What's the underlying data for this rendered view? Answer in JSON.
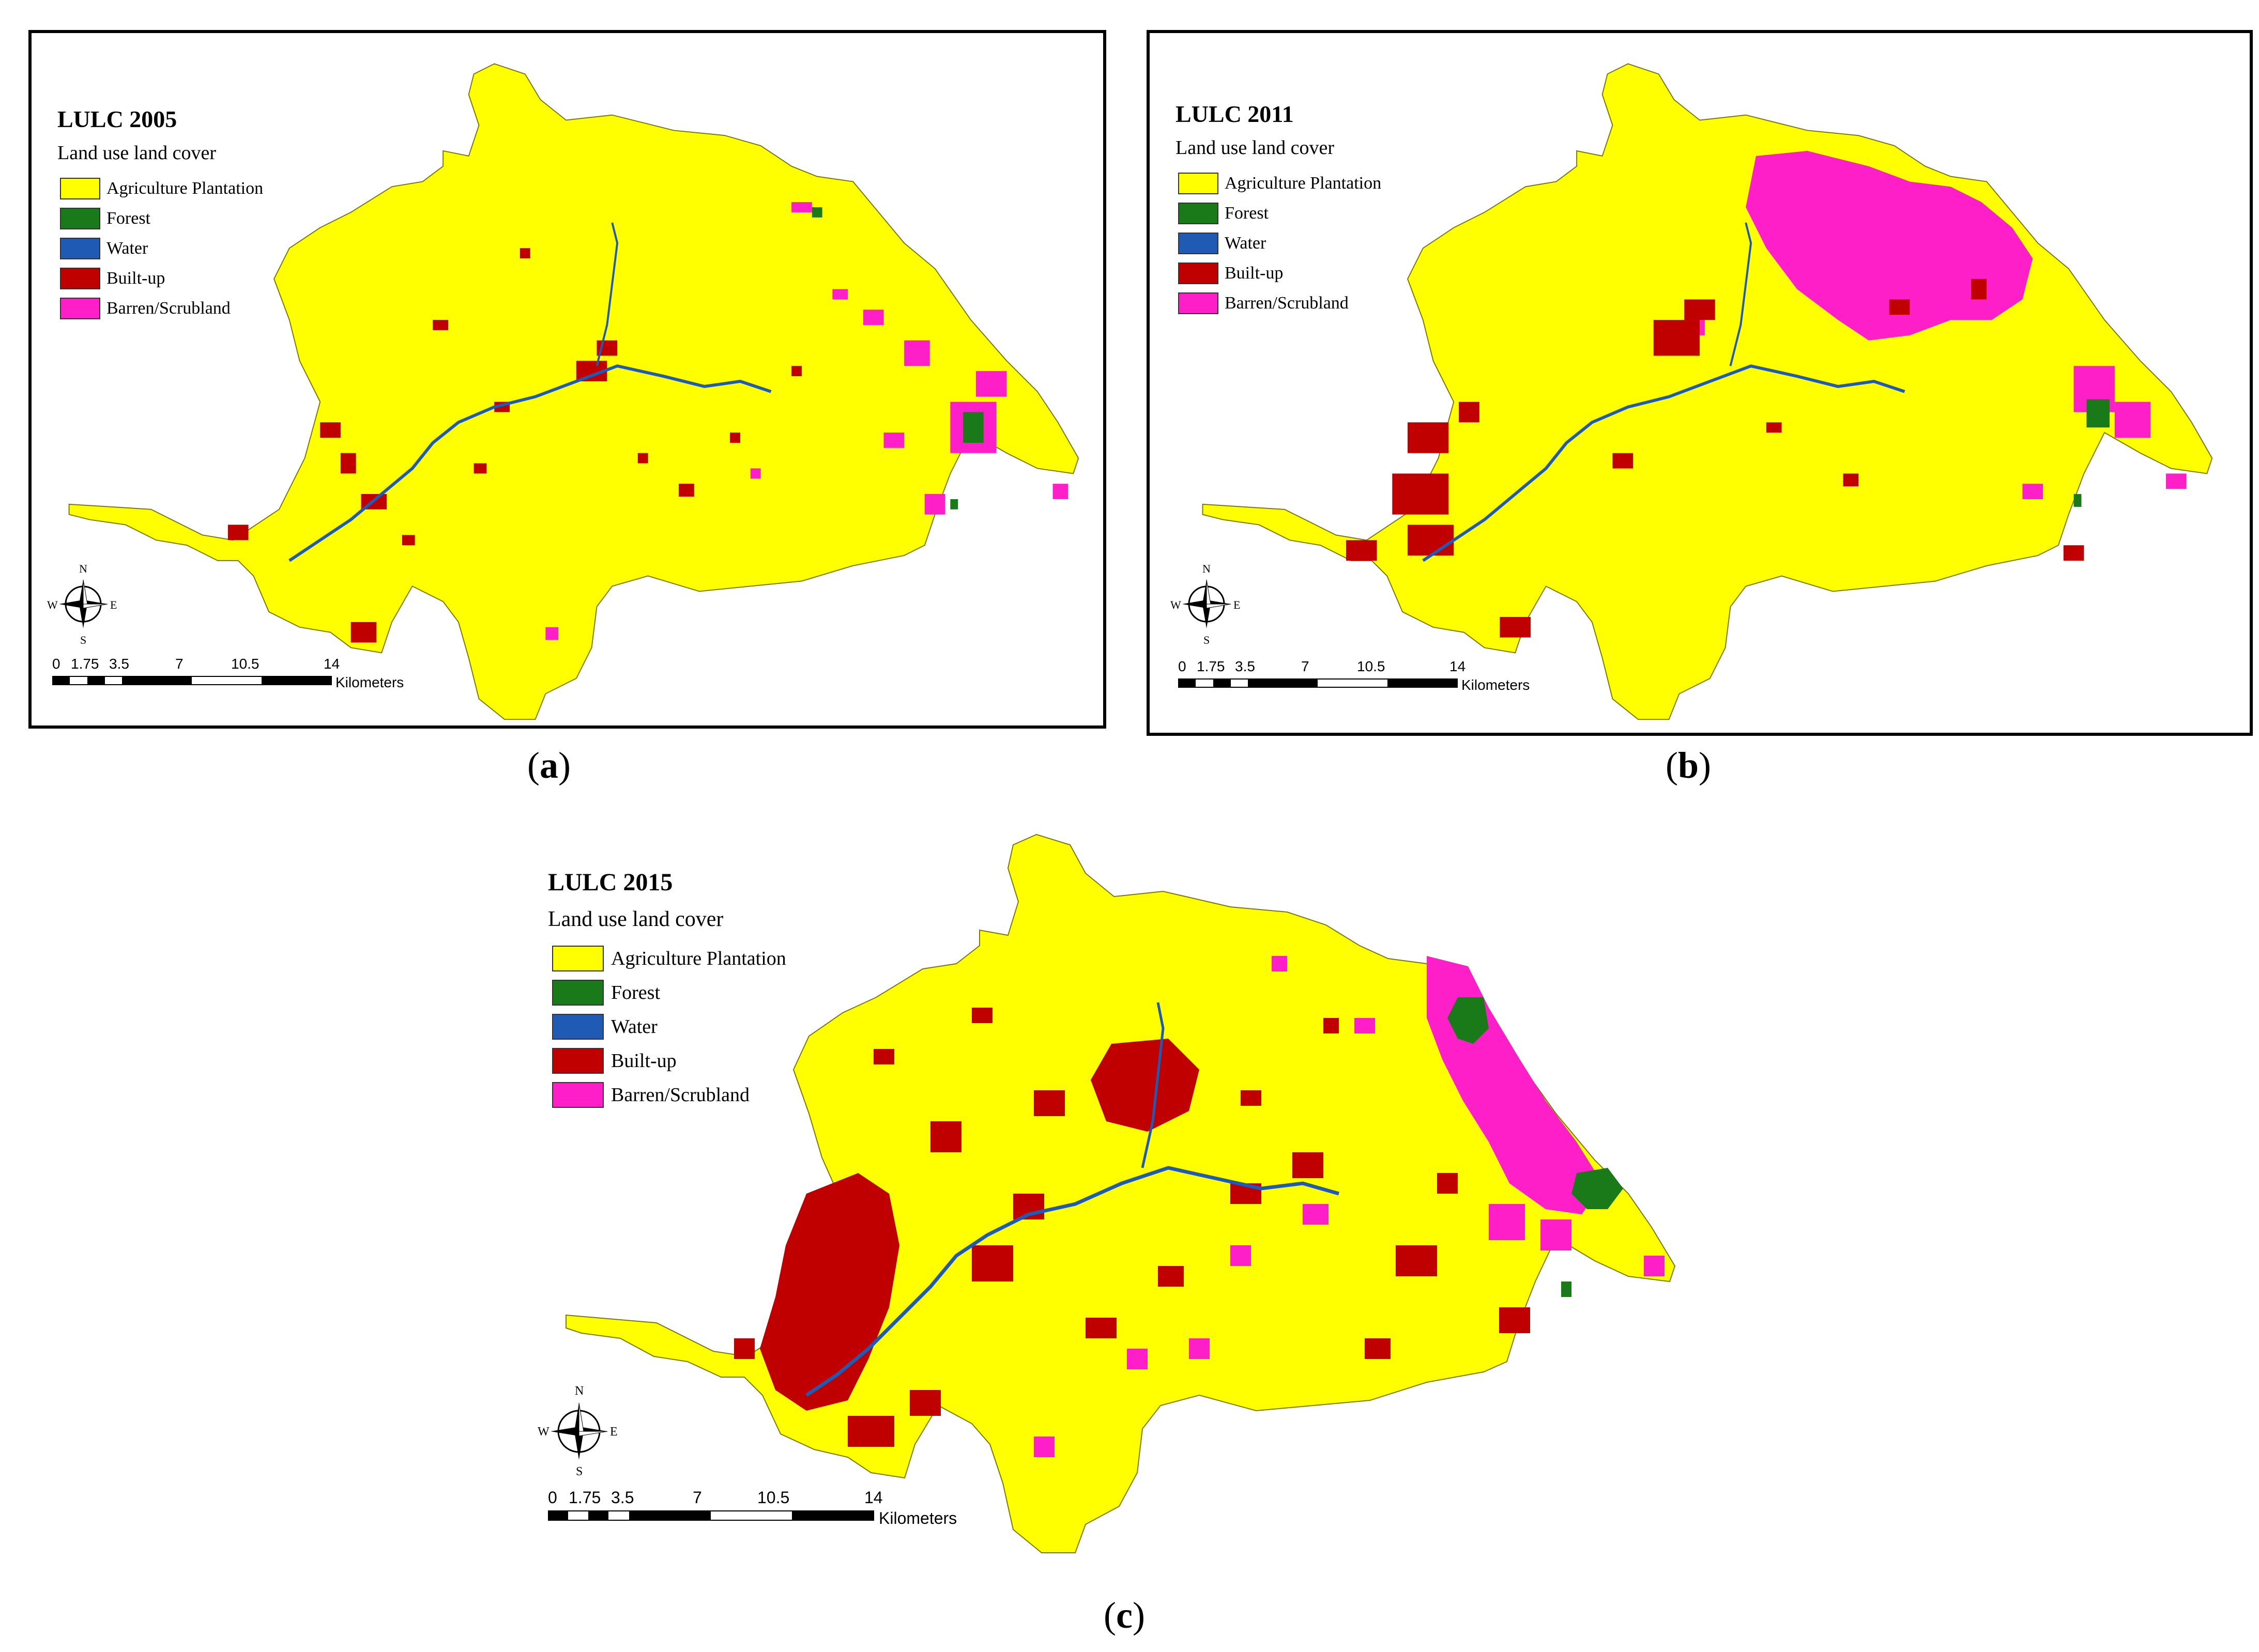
{
  "panels": [
    {
      "id": "a",
      "title": "LULC 2005",
      "subtitle": "Land use land cover",
      "caption_letter": "a"
    },
    {
      "id": "b",
      "title": "LULC 2011",
      "subtitle": "Land use land cover",
      "caption_letter": "b"
    },
    {
      "id": "c",
      "title": "LULC 2015",
      "subtitle": "Land use land cover",
      "caption_letter": "c"
    }
  ],
  "legend": [
    {
      "label": "Agriculture Plantation",
      "color": "#ffff00"
    },
    {
      "label": "Forest",
      "color": "#1a7a1a"
    },
    {
      "label": "Water",
      "color": "#1f5bb5"
    },
    {
      "label": "Built-up",
      "color": "#c00000"
    },
    {
      "label": "Barren/Scrubland",
      "color": "#ff1fc8"
    }
  ],
  "scale": {
    "ticks": [
      "0",
      "1.75",
      "3.5",
      "7",
      "10.5",
      "14"
    ],
    "unit": "Kilometers"
  },
  "compass": {
    "n": "N",
    "s": "S",
    "e": "E",
    "w": "W"
  },
  "caption_open": "(",
  "caption_close": ")"
}
